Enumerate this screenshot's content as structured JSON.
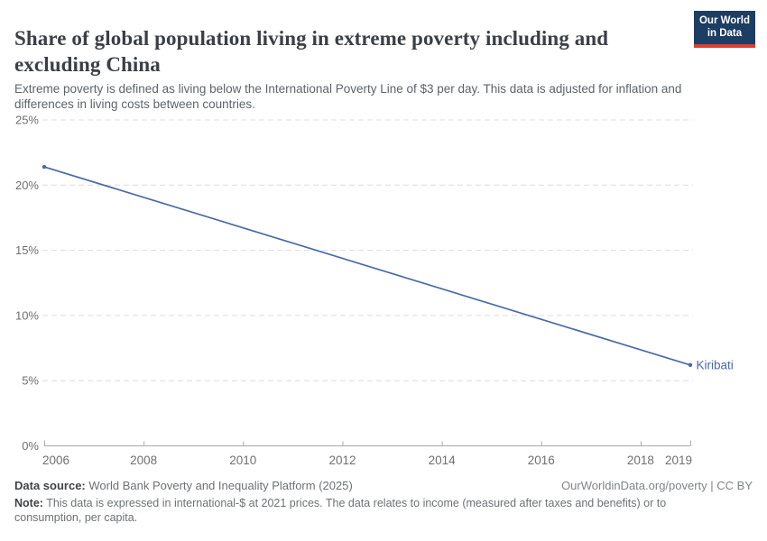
{
  "header": {
    "title": "Share of global population living in extreme poverty including and excluding China",
    "subtitle": "Extreme poverty is defined as living below the International Poverty Line of $3 per day. This data is adjusted for inflation and differences in living costs between countries.",
    "logo": {
      "line1": "Our World",
      "line2": "in Data"
    }
  },
  "chart_data": {
    "type": "line",
    "title": "Share of global population living in extreme poverty including and excluding China",
    "xlabel": "",
    "ylabel": "",
    "xlim": [
      2006,
      2019
    ],
    "ylim": [
      0,
      25
    ],
    "x_ticks": [
      2006,
      2008,
      2010,
      2012,
      2014,
      2016,
      2018,
      2019
    ],
    "y_ticks": [
      0,
      5,
      10,
      15,
      20,
      25
    ],
    "y_tick_suffix": "%",
    "grid": "dashed-horizontal",
    "legend_position": "end-of-line-label",
    "series": [
      {
        "name": "Kiribati",
        "color": "#4a69a8",
        "x": [
          2006,
          2019
        ],
        "values": [
          21.4,
          6.2
        ]
      }
    ]
  },
  "footer": {
    "data_source_label": "Data source:",
    "data_source_text": "World Bank Poverty and Inequality Platform (2025)",
    "rights": "OurWorldinData.org/poverty | CC BY",
    "note_label": "Note:",
    "note_text": "This data is expressed in international-$ at 2021 prices. The data relates to income (measured after taxes and benefits) or to consumption, per capita."
  },
  "colors": {
    "line_blue": "#4a69a8",
    "logo_navy": "#1d3d63",
    "logo_red": "#dc3e32",
    "gridline": "#dcdcdc",
    "axis": "#a9a9a9",
    "title_text": "#3b3f46",
    "subtitle_text": "#5d6369"
  }
}
